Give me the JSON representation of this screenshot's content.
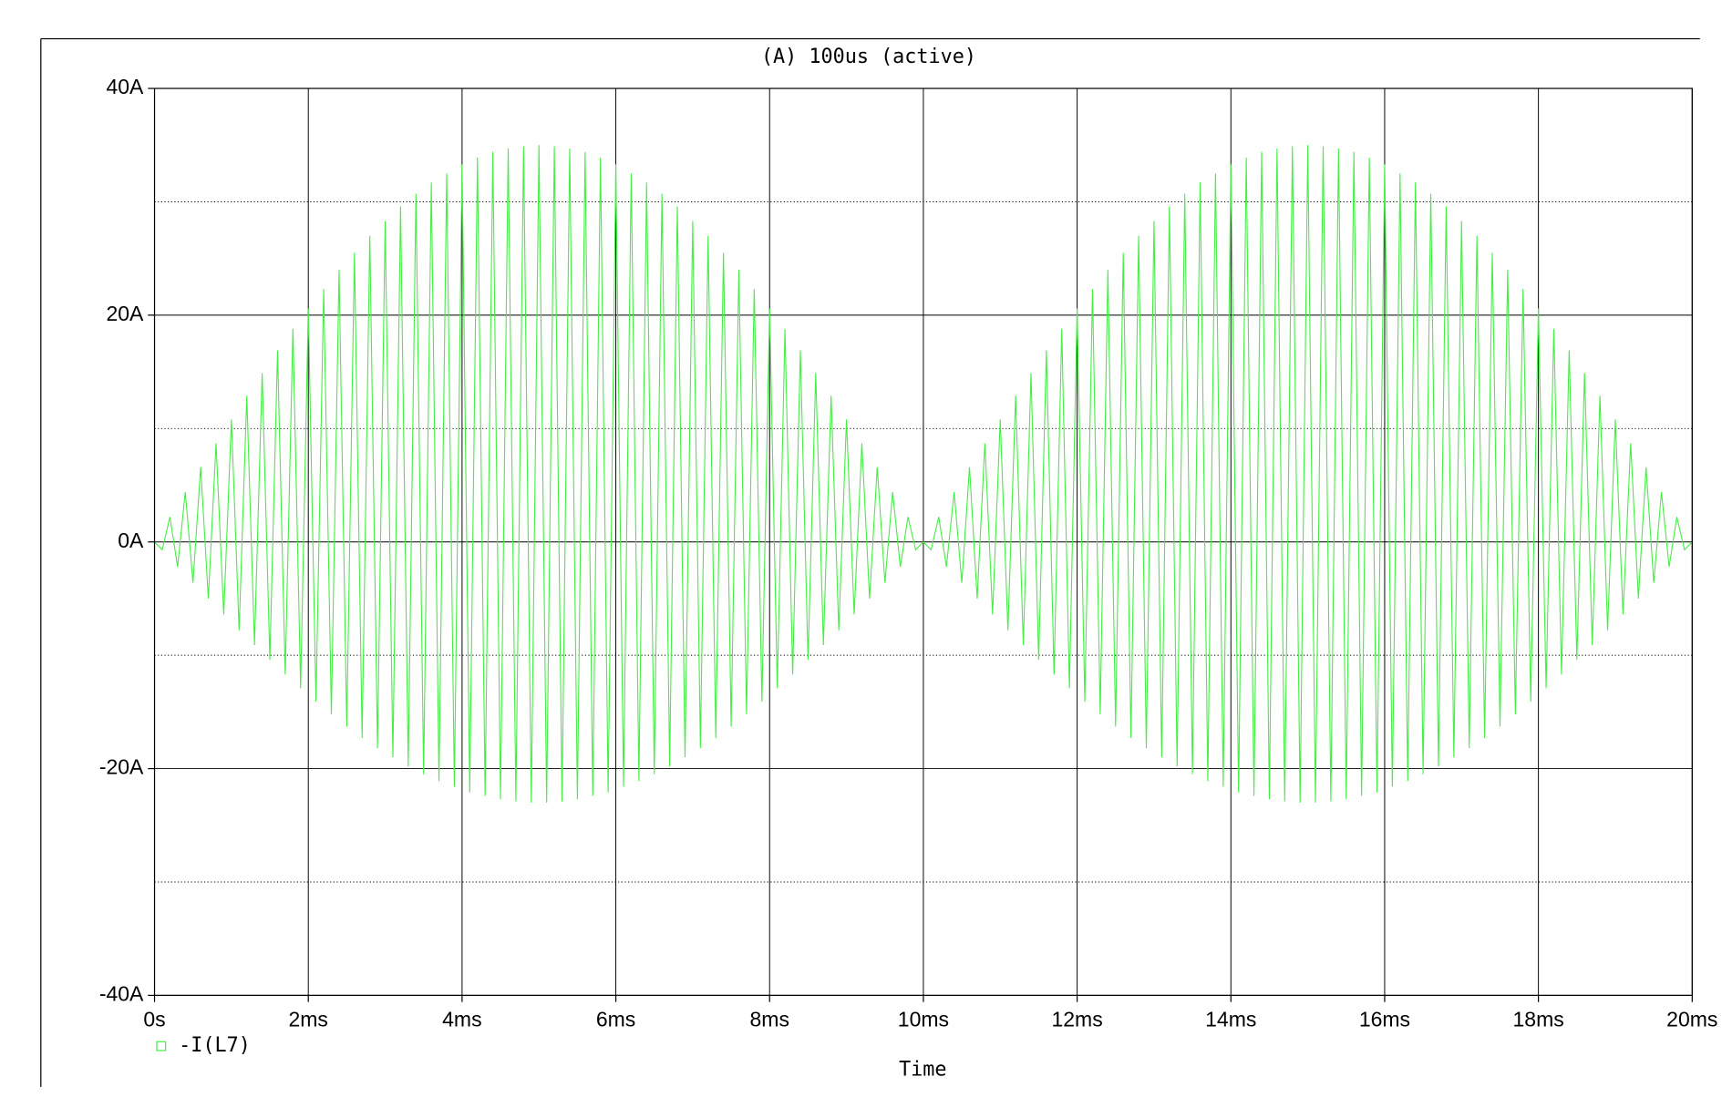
{
  "chart_data": {
    "type": "line",
    "title": "(A) 100us (active)",
    "xlabel": "Time",
    "xlim": [
      0,
      20
    ],
    "ylim": [
      -40,
      40
    ],
    "xticks": [
      {
        "value": 0,
        "label": "0s"
      },
      {
        "value": 2,
        "label": "2ms"
      },
      {
        "value": 4,
        "label": "4ms"
      },
      {
        "value": 6,
        "label": "6ms"
      },
      {
        "value": 8,
        "label": "8ms"
      },
      {
        "value": 10,
        "label": "10ms"
      },
      {
        "value": 12,
        "label": "12ms"
      },
      {
        "value": 14,
        "label": "14ms"
      },
      {
        "value": 16,
        "label": "16ms"
      },
      {
        "value": 18,
        "label": "18ms"
      },
      {
        "value": 20,
        "label": "20ms"
      }
    ],
    "yticks": [
      {
        "value": -40,
        "label": "-40A"
      },
      {
        "value": -20,
        "label": "-20A"
      },
      {
        "value": 0,
        "label": "0A"
      },
      {
        "value": 20,
        "label": "20A"
      },
      {
        "value": 40,
        "label": "40A"
      }
    ],
    "minor_yticks": [
      -30,
      -10,
      10,
      30
    ],
    "grid": true,
    "x": [
      0,
      0.1,
      0.2,
      0.3,
      0.4,
      0.5,
      0.6,
      0.7,
      0.8,
      0.9,
      1,
      1.1,
      1.2,
      1.3,
      1.4,
      1.5,
      1.6,
      1.7,
      1.8,
      1.9,
      2,
      2.1,
      2.2,
      2.3,
      2.4,
      2.5,
      2.6,
      2.7,
      2.8,
      2.9,
      3,
      3.1,
      3.2,
      3.3,
      3.4,
      3.5,
      3.6,
      3.7,
      3.8,
      3.9,
      4,
      4.1,
      4.2,
      4.3,
      4.4,
      4.5,
      4.6,
      4.7,
      4.8,
      4.9,
      5,
      5.1,
      5.2,
      5.3,
      5.4,
      5.5,
      5.6,
      5.7,
      5.8,
      5.9,
      6,
      6.1,
      6.2,
      6.3,
      6.4,
      6.5,
      6.6,
      6.7,
      6.8,
      6.9,
      7,
      7.1,
      7.2,
      7.3,
      7.4,
      7.5,
      7.6,
      7.7,
      7.8,
      7.9,
      8,
      8.1,
      8.2,
      8.3,
      8.4,
      8.5,
      8.6,
      8.7,
      8.8,
      8.9,
      9,
      9.1,
      9.2,
      9.3,
      9.4,
      9.5,
      9.6,
      9.7,
      9.8,
      9.9,
      10,
      10.1,
      10.2,
      10.3,
      10.4,
      10.5,
      10.6,
      10.7,
      10.8,
      10.9,
      11,
      11.1,
      11.2,
      11.3,
      11.4,
      11.5,
      11.6,
      11.7,
      11.8,
      11.9,
      12,
      12.1,
      12.2,
      12.3,
      12.4,
      12.5,
      12.6,
      12.7,
      12.8,
      12.9,
      13,
      13.1,
      13.2,
      13.3,
      13.4,
      13.5,
      13.6,
      13.7,
      13.8,
      13.9,
      14,
      14.1,
      14.2,
      14.3,
      14.4,
      14.5,
      14.6,
      14.7,
      14.8,
      14.9,
      15,
      15.1,
      15.2,
      15.3,
      15.4,
      15.5,
      15.6,
      15.7,
      15.8,
      15.9,
      16,
      16.1,
      16.2,
      16.3,
      16.4,
      16.5,
      16.6,
      16.7,
      16.8,
      16.9,
      17,
      17.1,
      17.2,
      17.3,
      17.4,
      17.5,
      17.6,
      17.7,
      17.8,
      17.9,
      18,
      18.1,
      18.2,
      18.3,
      18.4,
      18.5,
      18.6,
      18.7,
      18.8,
      18.9,
      19,
      19.1,
      19.2,
      19.3,
      19.4,
      19.5,
      19.6,
      19.7,
      19.8,
      19.9,
      20
    ],
    "series": [
      {
        "name": "-I(L7)",
        "color": "#44ee44",
        "values": [
          0,
          -0.7,
          2.2,
          -2.2,
          4.4,
          -3.6,
          6.6,
          -5.0,
          8.7,
          -6.4,
          10.8,
          -7.8,
          12.9,
          -9.1,
          14.9,
          -10.4,
          16.9,
          -11.7,
          18.8,
          -12.9,
          20.6,
          -14.1,
          22.3,
          -15.2,
          24.0,
          -16.3,
          25.5,
          -17.3,
          27.0,
          -18.2,
          28.3,
          -19.0,
          29.6,
          -19.8,
          30.7,
          -20.5,
          31.7,
          -21.1,
          32.5,
          -21.6,
          33.3,
          -22.1,
          33.9,
          -22.4,
          34.4,
          -22.7,
          34.7,
          -22.9,
          34.9,
          -23.0,
          35.0,
          -23.0,
          34.9,
          -22.9,
          34.7,
          -22.7,
          34.4,
          -22.4,
          33.9,
          -22.1,
          33.3,
          -21.6,
          32.5,
          -21.1,
          31.7,
          -20.5,
          30.7,
          -19.8,
          29.6,
          -19.0,
          28.3,
          -18.2,
          27.0,
          -17.3,
          25.5,
          -16.3,
          24.0,
          -15.2,
          22.3,
          -14.1,
          20.6,
          -12.9,
          18.8,
          -11.7,
          16.9,
          -10.4,
          14.9,
          -9.1,
          12.9,
          -7.8,
          10.8,
          -6.4,
          8.7,
          -5.0,
          6.6,
          -3.6,
          4.4,
          -2.2,
          2.2,
          -0.7,
          0,
          -0.7,
          2.2,
          -2.2,
          4.4,
          -3.6,
          6.6,
          -5.0,
          8.7,
          -6.4,
          10.8,
          -7.8,
          12.9,
          -9.1,
          14.9,
          -10.4,
          16.9,
          -11.7,
          18.8,
          -12.9,
          20.6,
          -14.1,
          22.3,
          -15.2,
          24.0,
          -16.3,
          25.5,
          -17.3,
          27.0,
          -18.2,
          28.3,
          -19.0,
          29.6,
          -19.8,
          30.7,
          -20.5,
          31.7,
          -21.1,
          32.5,
          -21.6,
          33.3,
          -22.1,
          33.9,
          -22.4,
          34.4,
          -22.7,
          34.7,
          -22.9,
          34.9,
          -23.0,
          35.0,
          -23.0,
          34.9,
          -22.9,
          34.7,
          -22.7,
          34.4,
          -22.4,
          33.9,
          -22.1,
          33.3,
          -21.6,
          32.5,
          -21.1,
          31.7,
          -20.5,
          30.7,
          -19.8,
          29.6,
          -19.0,
          28.3,
          -18.2,
          27.0,
          -17.3,
          25.5,
          -16.3,
          24.0,
          -15.2,
          22.3,
          -14.1,
          20.6,
          -12.9,
          18.8,
          -11.7,
          16.9,
          -10.4,
          14.9,
          -9.1,
          12.9,
          -7.8,
          10.8,
          -6.4,
          8.7,
          -5.0,
          6.6,
          -3.6,
          4.4,
          -2.2,
          2.2,
          -0.7,
          0
        ]
      }
    ]
  }
}
